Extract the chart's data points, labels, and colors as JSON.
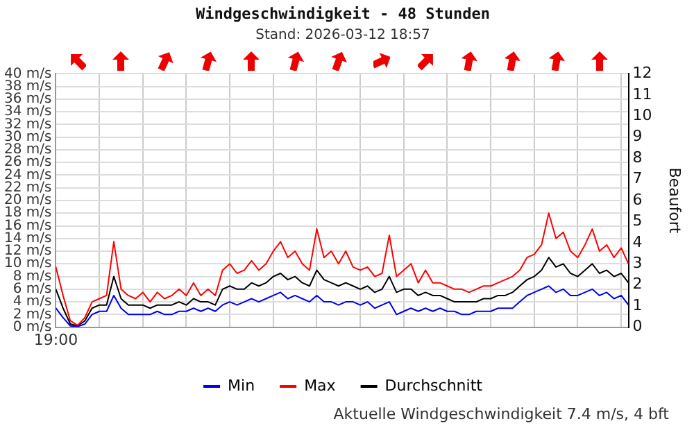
{
  "chart_data": {
    "type": "line",
    "title": "Windgeschwindigkeit - 48 Stunden",
    "subtitle": "Stand: 2026-03-12 18:57",
    "y2label": "Beaufort",
    "annotations": [
      "Aktuelle Windgeschwindigkeit 7.4 m/s, 4 bft"
    ],
    "categories": [
      "19:00",
      null,
      null,
      null,
      null,
      null,
      null,
      null,
      null,
      null,
      null,
      null,
      null,
      null,
      null,
      null,
      null,
      null,
      null,
      null,
      null,
      null,
      null,
      null,
      null,
      null,
      null,
      null,
      null,
      null,
      null,
      null,
      null,
      null,
      null,
      null,
      null,
      null,
      null,
      null,
      null,
      null,
      null,
      null,
      null,
      null,
      null,
      null,
      null,
      null,
      null,
      null,
      null,
      null,
      null,
      null,
      null,
      null,
      null,
      null,
      null,
      null,
      null,
      null,
      null,
      null,
      null,
      null,
      null,
      null,
      null,
      null,
      null,
      null,
      null,
      null,
      null,
      null,
      null,
      null
    ],
    "series": [
      {
        "name": "Min",
        "color": "#0000ee",
        "values": [
          3,
          1.5,
          0.2,
          0.1,
          0.5,
          2,
          2.5,
          2.5,
          5,
          3,
          2,
          2,
          2,
          2,
          2.5,
          2,
          2,
          2.5,
          2.5,
          3,
          2.5,
          3,
          2.5,
          3.5,
          4,
          3.5,
          4,
          4.5,
          4,
          4.5,
          5,
          5.5,
          4.5,
          5,
          4.5,
          4,
          5,
          4,
          4,
          3.5,
          4,
          4,
          3.5,
          4,
          3,
          3.5,
          4,
          2,
          2.5,
          3,
          2.5,
          3,
          2.5,
          3,
          2.5,
          2.5,
          2,
          2,
          2.5,
          2.5,
          2.5,
          3,
          3,
          3,
          4,
          5,
          5.5,
          6,
          6.5,
          5.5,
          6,
          5,
          5,
          5.5,
          6,
          5,
          5.5,
          4.5,
          5,
          3.5
        ]
      },
      {
        "name": "Max",
        "color": "#ff0000",
        "values": [
          9.5,
          5,
          1,
          0.3,
          1.5,
          4,
          4.5,
          5,
          13.5,
          6,
          5,
          4.5,
          5.5,
          4,
          5.5,
          4.5,
          5,
          6,
          5,
          7,
          5,
          6,
          5,
          9,
          10,
          8.5,
          9,
          10.5,
          9,
          10,
          12,
          13.5,
          11,
          12,
          10,
          9,
          15.5,
          11,
          12,
          10,
          12,
          9.5,
          9,
          9.5,
          8,
          8.5,
          14.5,
          8,
          9,
          10,
          7,
          9,
          7,
          7,
          6.5,
          6,
          6,
          5.5,
          6,
          6.5,
          6.5,
          7,
          7.5,
          8,
          9,
          11,
          11.5,
          13,
          18,
          14,
          15,
          12,
          11,
          13,
          15.5,
          12,
          13,
          11,
          12.5,
          10
        ]
      },
      {
        "name": "Durchschnitt",
        "color": "#000000",
        "values": [
          6,
          3,
          0.5,
          0.2,
          1,
          3,
          3.5,
          3.5,
          8,
          4.5,
          3.5,
          3.5,
          3.5,
          3,
          3.5,
          3.5,
          3.5,
          4,
          3.5,
          4.5,
          4,
          4,
          3.5,
          6,
          6.5,
          6,
          6,
          7,
          6.5,
          7,
          8,
          8.5,
          7.5,
          8,
          7,
          6.5,
          9,
          7.5,
          7,
          6.5,
          7,
          6.5,
          6,
          6.5,
          5.5,
          6,
          8,
          5.5,
          6,
          6,
          5,
          5.5,
          5,
          5,
          4.5,
          4,
          4,
          4,
          4,
          4.5,
          4.5,
          5,
          5,
          5.5,
          6.5,
          7.5,
          8,
          9,
          11,
          9.5,
          10,
          8.5,
          8,
          9,
          10,
          8.5,
          9,
          8,
          8.5,
          7
        ]
      }
    ],
    "ylim": [
      0,
      40
    ],
    "yticks": [
      {
        "value": 0,
        "label": "0 m/s"
      },
      {
        "value": 2,
        "label": "2 m/s"
      },
      {
        "value": 4,
        "label": "4 m/s"
      },
      {
        "value": 6,
        "label": "6 m/s"
      },
      {
        "value": 8,
        "label": "8 m/s"
      },
      {
        "value": 10,
        "label": "10 m/s"
      },
      {
        "value": 12,
        "label": "12 m/s"
      },
      {
        "value": 14,
        "label": "14 m/s"
      },
      {
        "value": 16,
        "label": "16 m/s"
      },
      {
        "value": 18,
        "label": "18 m/s"
      },
      {
        "value": 20,
        "label": "20 m/s"
      },
      {
        "value": 22,
        "label": "22 m/s"
      },
      {
        "value": 24,
        "label": "24 m/s"
      },
      {
        "value": 26,
        "label": "26 m/s"
      },
      {
        "value": 28,
        "label": "28 m/s"
      },
      {
        "value": 30,
        "label": "30 m/s"
      },
      {
        "value": 32,
        "label": "32 m/s"
      },
      {
        "value": 34,
        "label": "34 m/s"
      },
      {
        "value": 36,
        "label": "36 m/s"
      },
      {
        "value": 38,
        "label": "38 m/s"
      },
      {
        "value": 40,
        "label": "40 m/s"
      }
    ],
    "y2lim": [
      0,
      12
    ],
    "y2ticks": [
      0,
      1,
      2,
      3,
      4,
      5,
      6,
      7,
      8,
      9,
      10,
      11,
      12
    ],
    "grid": true,
    "legend": "bottom",
    "marker": "none",
    "line_style": "solid"
  }
}
